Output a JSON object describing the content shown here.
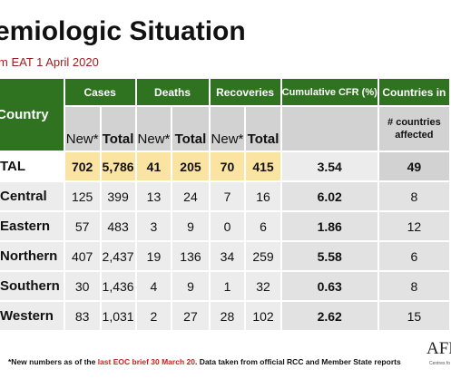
{
  "title": "emiologic Situation",
  "subtitle": "m EAT 1 April 2020",
  "table": {
    "header": {
      "country": "Country",
      "cases": "Cases",
      "deaths": "Deaths",
      "recoveries": "Recoveries",
      "cfr": "Cumulative CFR (%)",
      "countries": "Countries in",
      "new": "New*",
      "total": "Total",
      "affected": "# countries affected"
    },
    "rows": [
      {
        "region": "TAL",
        "cases_new": "702",
        "cases_total": "5,786",
        "deaths_new": "41",
        "deaths_total": "205",
        "rec_new": "70",
        "rec_total": "415",
        "cfr": "3.54",
        "affected": "49"
      },
      {
        "region": "Central",
        "cases_new": "125",
        "cases_total": "399",
        "deaths_new": "13",
        "deaths_total": "24",
        "rec_new": "7",
        "rec_total": "16",
        "cfr": "6.02",
        "affected": "8"
      },
      {
        "region": "Eastern",
        "cases_new": "57",
        "cases_total": "483",
        "deaths_new": "3",
        "deaths_total": "9",
        "rec_new": "0",
        "rec_total": "6",
        "cfr": "1.86",
        "affected": "12"
      },
      {
        "region": "Northern",
        "cases_new": "407",
        "cases_total": "2,437",
        "deaths_new": "19",
        "deaths_total": "136",
        "rec_new": "34",
        "rec_total": "259",
        "cfr": "5.58",
        "affected": "6"
      },
      {
        "region": "Southern",
        "cases_new": "30",
        "cases_total": "1,436",
        "deaths_new": "4",
        "deaths_total": "9",
        "rec_new": "1",
        "rec_total": "32",
        "cfr": "0.63",
        "affected": "8"
      },
      {
        "region": "Western",
        "cases_new": "83",
        "cases_total": "1,031",
        "deaths_new": "2",
        "deaths_total": "27",
        "rec_new": "28",
        "rec_total": "102",
        "cfr": "2.62",
        "affected": "15"
      }
    ]
  },
  "footnote": {
    "part1": "*New numbers as of the ",
    "highlight": "last EOC brief 30 March 20",
    "part2": ". Data taken from official RCC and Member State reports"
  },
  "logo": {
    "text": "AFR",
    "subtext": "Centres fo"
  },
  "colors": {
    "header_green": "#2f7320",
    "total_highlight": "#fbe3a2",
    "subheader_gray": "#d2d2d2",
    "footnote_red": "#cc1f1f"
  }
}
